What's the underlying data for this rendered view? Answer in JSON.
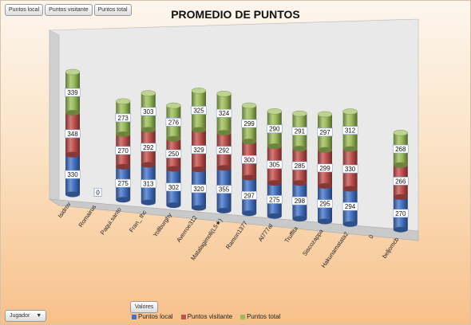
{
  "toolbar": {
    "buttons": [
      "Puntos local",
      "Puntos visitante",
      "Puntos total"
    ]
  },
  "bottom": {
    "row_field": "Jugador",
    "row_field_arrow": "▼",
    "values_field": "Valores"
  },
  "colors": {
    "local": "#4472c4",
    "visitante": "#c0504d",
    "total": "#9bbb59"
  },
  "chart_data": {
    "type": "bar",
    "stacked": true,
    "three_d": true,
    "title": "PROMEDIO DE PUNTOS",
    "categories": [
      "Isidrov",
      "Romairus",
      "Paqui.santo",
      "Fran_ thc",
      "Yollburghy",
      "Averroe312",
      "Matalagimoli(L5★)",
      "Ramon1377",
      "Al777al",
      "Truffita",
      "Siscozappa",
      "Hakunamatata2",
      "0",
      "beljomcb"
    ],
    "series": [
      {
        "name": "Puntos local",
        "values": [
          330,
          0,
          275,
          313,
          302,
          320,
          355,
          297,
          275,
          298,
          295,
          294,
          null,
          270
        ]
      },
      {
        "name": "Puntos visitante",
        "values": [
          348,
          0,
          270,
          292,
          250,
          329,
          292,
          300,
          305,
          285,
          299,
          330,
          null,
          266
        ]
      },
      {
        "name": "Puntos total",
        "values": [
          339,
          0,
          273,
          303,
          276,
          325,
          324,
          299,
          290,
          291,
          297,
          312,
          null,
          268
        ]
      }
    ],
    "legend_position": "bottom"
  }
}
